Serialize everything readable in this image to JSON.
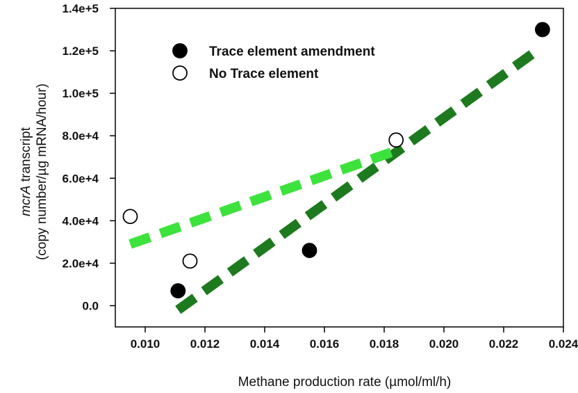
{
  "chart_data": {
    "type": "scatter",
    "xlabel": "Methane production rate (µmol/ml/h)",
    "ylabel_italic": "mcrA",
    "ylabel_rest": " transcript",
    "ylabel_line2": "(copy number/µg mRNA/hour)",
    "xlim": [
      0.009,
      0.024
    ],
    "ylim": [
      -10000,
      140000
    ],
    "x_ticks": [
      0.01,
      0.012,
      0.014,
      0.016,
      0.018,
      0.02,
      0.022,
      0.024
    ],
    "x_tick_labels": [
      "0.010",
      "0.012",
      "0.014",
      "0.016",
      "0.018",
      "0.020",
      "0.022",
      "0.024"
    ],
    "y_ticks": [
      0,
      20000,
      40000,
      60000,
      80000,
      100000,
      120000,
      140000
    ],
    "y_tick_labels": [
      "0.0",
      "2.0e+4",
      "4.0e+4",
      "6.0e+4",
      "8.0e+4",
      "1.0e+5",
      "1.2e+5",
      "1.4e+5"
    ],
    "grid": false,
    "legend_position": "top-left",
    "series": [
      {
        "name": "Trace element amendment",
        "marker": "filled-circle",
        "color": "#000000",
        "points": [
          [
            0.0111,
            7000
          ],
          [
            0.0155,
            26000
          ],
          [
            0.0233,
            130000
          ]
        ],
        "trendline": {
          "x": [
            0.0111,
            0.0232
          ],
          "y": [
            -2000,
            121000
          ],
          "color": "#1e7a1e"
        }
      },
      {
        "name": "No Trace element",
        "marker": "open-circle",
        "color": "#000000",
        "points": [
          [
            0.0095,
            42000
          ],
          [
            0.0115,
            21000
          ],
          [
            0.0184,
            78000
          ]
        ],
        "trendline": {
          "x": [
            0.0095,
            0.0184
          ],
          "y": [
            29000,
            73000
          ],
          "color": "#3de23d"
        }
      }
    ]
  }
}
